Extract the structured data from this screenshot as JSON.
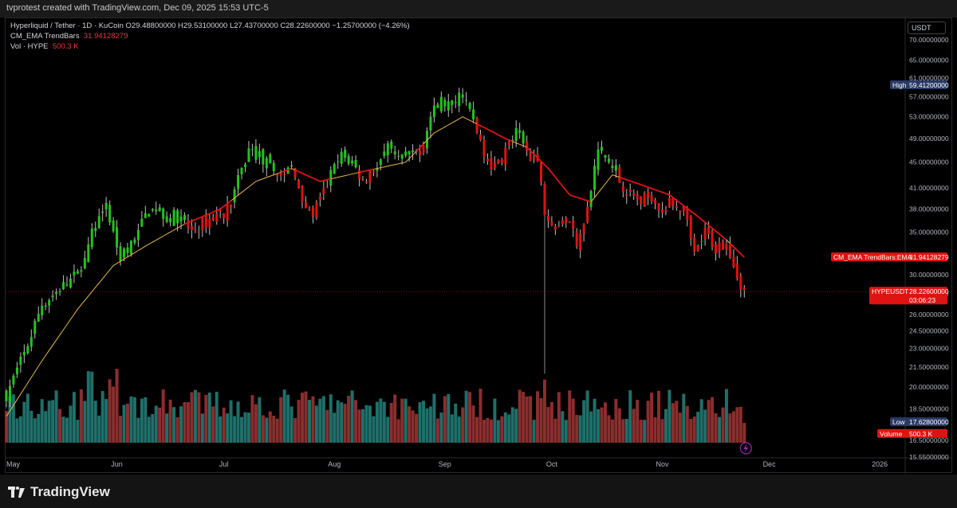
{
  "header": {
    "text": "tvprotest created with TradingView.com, Dec 09, 2025 15:53 UTC-5"
  },
  "legend": {
    "line1": "Hyperliquid / Tether · 1D · KuCoin  O29.48800000  H29.53100000  L27.43700000  C28.22600000  −1.25700000 (−4.26%)",
    "line2_label": "CM_EMA TrendBars",
    "line2_value": "31.94128279",
    "line3_label": "Vol · HYPE",
    "line3_value": "500.3 K"
  },
  "currency": "USDT",
  "brand": "TradingView",
  "colors": {
    "up": "#22c31c",
    "down": "#e01212",
    "ema_up": "#e6b84a",
    "ema_down": "#e01212",
    "vol_up": "#1f6f6a",
    "vol_down": "#8a2e2e"
  },
  "price_labels": [
    {
      "label": "High",
      "value": "59.41200000",
      "color": "#2a3a66"
    },
    {
      "label": "CM_EMA TrendBars:EMA",
      "value": "31.94128279",
      "color": "#e01212"
    },
    {
      "label": "HYPEUSDT",
      "value": "28.22600000",
      "extra": "03:06:23",
      "color": "#e01212"
    },
    {
      "label": "Low",
      "value": "17.62800000",
      "color": "#2a3a66"
    },
    {
      "label": "Volume",
      "value": "500.3 K",
      "color": "#e01212"
    }
  ],
  "chart_data": {
    "type": "candlestick",
    "title": "Hyperliquid / Tether · 1D · KuCoin",
    "y_scale": "log",
    "ylim": [
      15.5,
      72
    ],
    "y_ticks": [
      "70.00000000",
      "65.00000000",
      "61.00000000",
      "57.00000000",
      "53.00000000",
      "49.00000000",
      "45.00000000",
      "41.00000000",
      "38.00000000",
      "35.00000000",
      "30.00000000",
      "28.00000000",
      "26.00000000",
      "24.50000000",
      "23.00000000",
      "21.50000000",
      "20.00000000",
      "18.50000000",
      "16.50000000",
      "15.55000000"
    ],
    "x_ticks": [
      "May",
      "Jun",
      "Jul",
      "Aug",
      "Sep",
      "Oct",
      "Nov",
      "Dec",
      "2026"
    ],
    "close_path": [
      [
        0,
        19.5
      ],
      [
        5,
        22.5
      ],
      [
        10,
        27
      ],
      [
        15,
        28.5
      ],
      [
        20,
        30
      ],
      [
        25,
        36
      ],
      [
        28,
        38
      ],
      [
        32,
        32
      ],
      [
        36,
        34
      ],
      [
        40,
        38
      ],
      [
        45,
        37
      ],
      [
        48,
        37
      ],
      [
        52,
        35
      ],
      [
        55,
        36
      ],
      [
        58,
        37
      ],
      [
        62,
        38
      ],
      [
        65,
        42
      ],
      [
        68,
        47
      ],
      [
        71,
        46
      ],
      [
        74,
        44
      ],
      [
        77,
        43
      ],
      [
        80,
        44
      ],
      [
        83,
        40
      ],
      [
        85,
        37
      ],
      [
        88,
        39
      ],
      [
        91,
        43
      ],
      [
        94,
        46
      ],
      [
        97,
        45
      ],
      [
        100,
        42
      ],
      [
        103,
        44
      ],
      [
        107,
        47
      ],
      [
        110,
        45
      ],
      [
        113,
        46
      ],
      [
        116,
        47
      ],
      [
        119,
        53
      ],
      [
        122,
        56
      ],
      [
        125,
        55
      ],
      [
        128,
        58
      ],
      [
        131,
        52
      ],
      [
        134,
        46
      ],
      [
        137,
        44
      ],
      [
        140,
        47
      ],
      [
        143,
        50
      ],
      [
        146,
        47
      ],
      [
        149,
        45
      ],
      [
        151,
        38
      ],
      [
        154,
        36
      ],
      [
        157,
        37
      ],
      [
        160,
        34
      ],
      [
        163,
        38
      ],
      [
        166,
        47
      ],
      [
        169,
        45
      ],
      [
        172,
        42
      ],
      [
        175,
        40
      ],
      [
        178,
        39
      ],
      [
        181,
        40
      ],
      [
        184,
        38
      ],
      [
        187,
        39
      ],
      [
        190,
        38
      ],
      [
        193,
        32
      ],
      [
        196,
        35
      ],
      [
        199,
        33
      ],
      [
        202,
        34
      ],
      [
        205,
        30
      ],
      [
        207,
        28.2
      ]
    ],
    "ema_path": [
      [
        0,
        18
      ],
      [
        10,
        22
      ],
      [
        20,
        26.5
      ],
      [
        30,
        31
      ],
      [
        40,
        33.5
      ],
      [
        50,
        36
      ],
      [
        60,
        38
      ],
      [
        70,
        42
      ],
      [
        80,
        44
      ],
      [
        88,
        42
      ],
      [
        96,
        43
      ],
      [
        104,
        44
      ],
      [
        112,
        45
      ],
      [
        120,
        50
      ],
      [
        128,
        53
      ],
      [
        134,
        51
      ],
      [
        140,
        49
      ],
      [
        146,
        47.5
      ],
      [
        152,
        44
      ],
      [
        158,
        40
      ],
      [
        164,
        39
      ],
      [
        170,
        43
      ],
      [
        178,
        41.5
      ],
      [
        186,
        40
      ],
      [
        194,
        37
      ],
      [
        202,
        34
      ],
      [
        207,
        31.94
      ]
    ],
    "wick_spikes": [
      {
        "day": 151,
        "low": 21.0
      }
    ],
    "x_month_days": {
      "May": 0,
      "Jun": 31,
      "Jul": 61,
      "Aug": 92,
      "Sep": 123,
      "Oct": 153,
      "Nov": 184,
      "Dec": 214,
      "2026": 245
    },
    "ema_last": 31.94128279,
    "volume_last": "500.3 K",
    "high": 59.412,
    "low": 17.628,
    "last": 28.226
  }
}
